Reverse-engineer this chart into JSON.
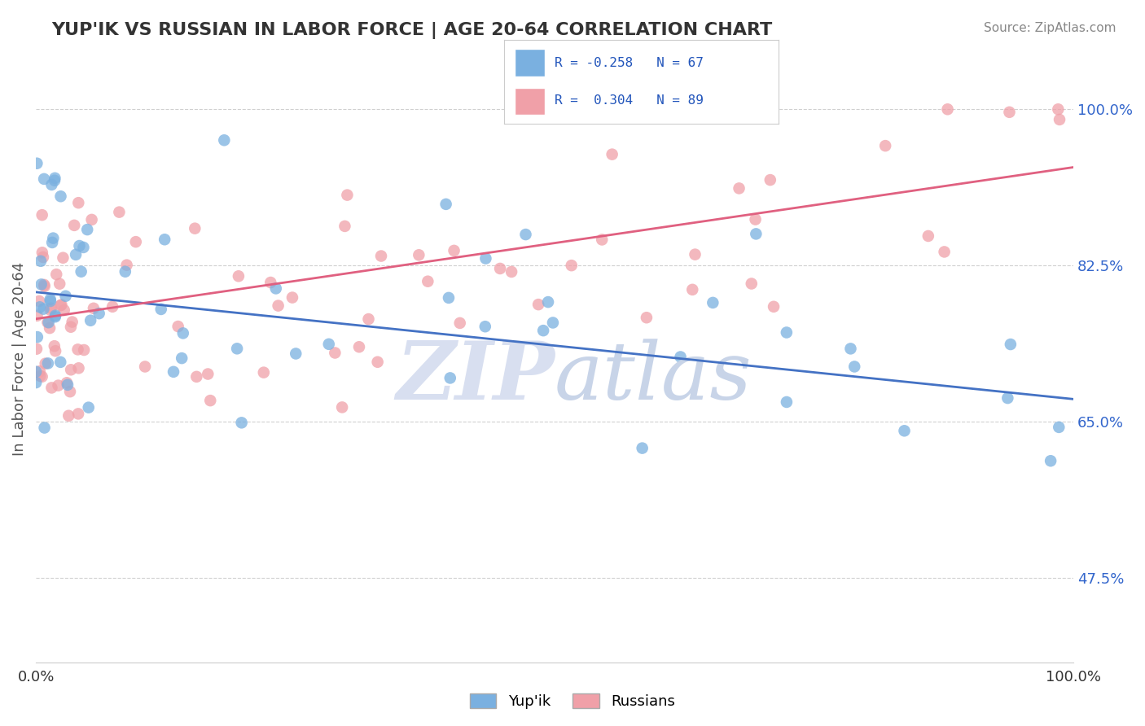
{
  "title": "YUP'IK VS RUSSIAN IN LABOR FORCE | AGE 20-64 CORRELATION CHART",
  "source_text": "Source: ZipAtlas.com",
  "ylabel": "In Labor Force | Age 20-64",
  "xlim": [
    0,
    1.0
  ],
  "ylim": [
    0.38,
    1.06
  ],
  "ytick_positions": [
    0.475,
    0.65,
    0.825,
    1.0
  ],
  "ytick_labels": [
    "47.5%",
    "65.0%",
    "82.5%",
    "100.0%"
  ],
  "blue_color": "#7ab0e0",
  "pink_color": "#f0a0a8",
  "blue_line_color": "#4472c4",
  "pink_line_color": "#e06080",
  "watermark_color": "#d8dff0",
  "background_color": "#ffffff",
  "grid_color": "#d0d0d0",
  "title_color": "#333333",
  "blue_r": -0.258,
  "blue_n": 67,
  "pink_r": 0.304,
  "pink_n": 89,
  "blue_trend_x0": 0.0,
  "blue_trend_y0": 0.795,
  "blue_trend_x1": 1.0,
  "blue_trend_y1": 0.675,
  "pink_trend_x0": 0.0,
  "pink_trend_y0": 0.765,
  "pink_trend_x1": 1.0,
  "pink_trend_y1": 0.935
}
